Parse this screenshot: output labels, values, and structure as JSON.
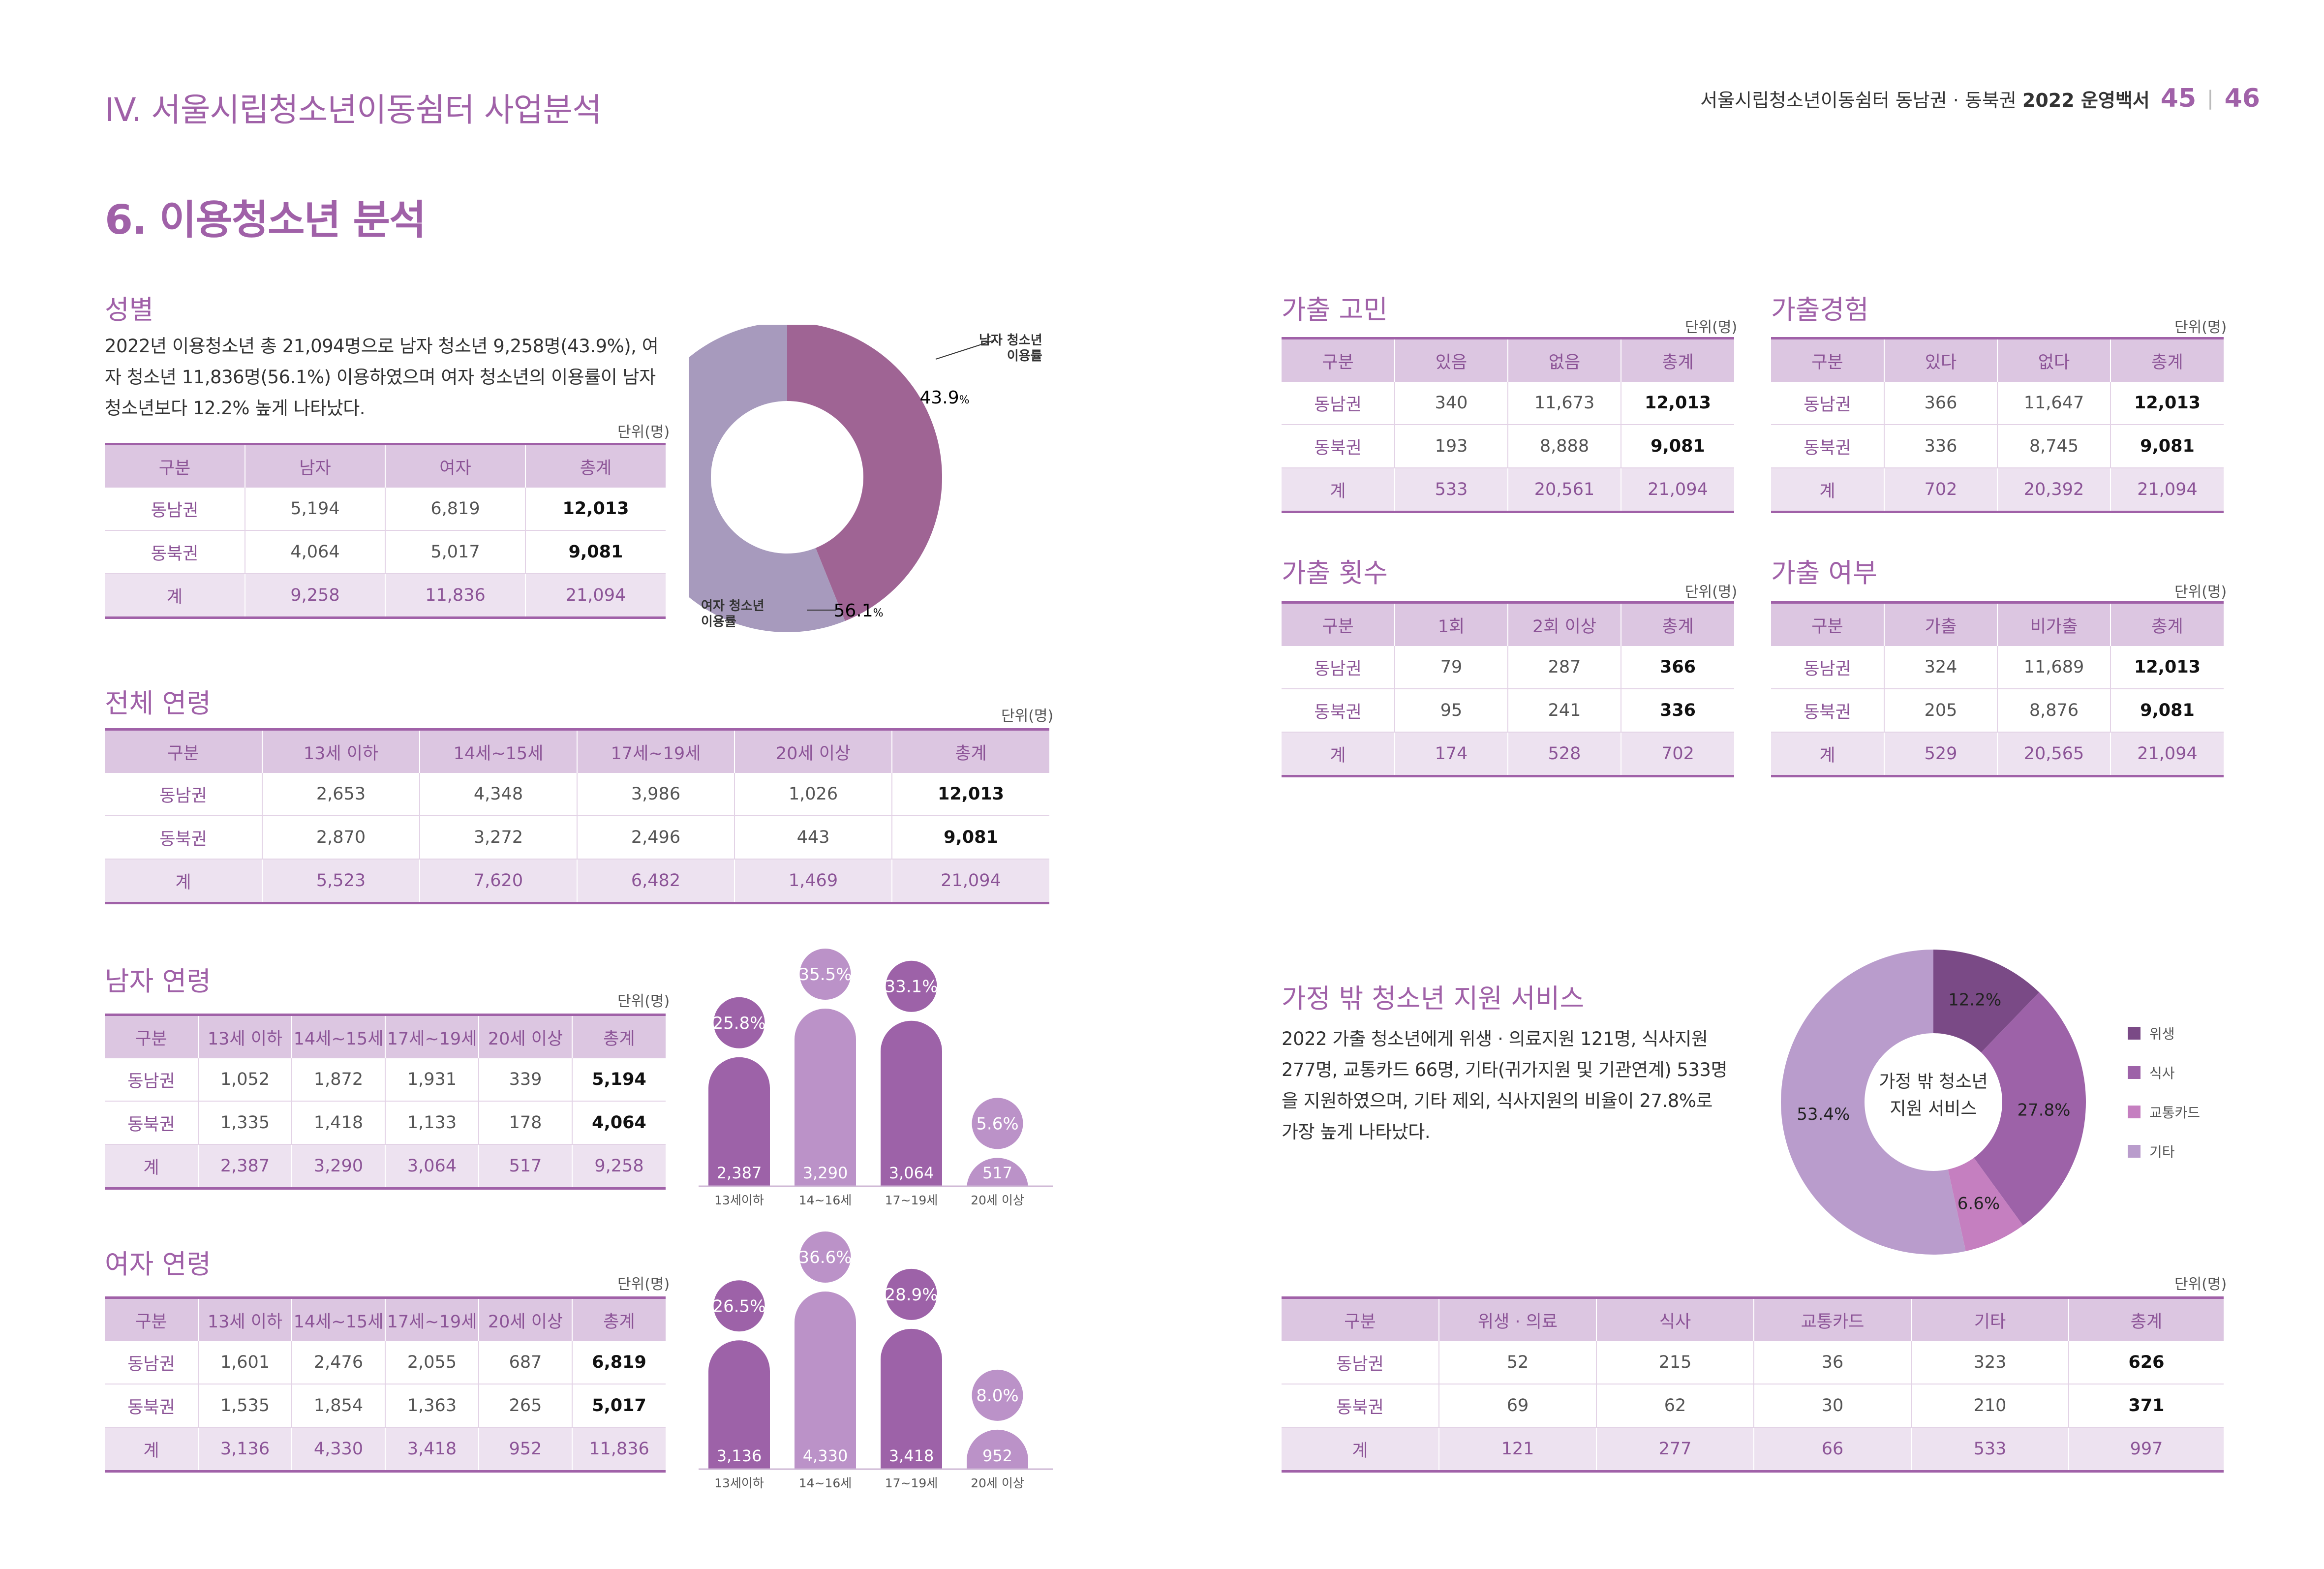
{
  "header": {
    "chapter_title": "IV. 서울시립청소년이동쉼터 사업분석",
    "book_title_prefix": "서울시립청소년이동쉼터 동남권 · 동북권",
    "book_title_bold": "2022 운영백서",
    "page_left": "45",
    "page_right": "46"
  },
  "section_title": "6. 이용청소년 분석",
  "unit_label": "단위(명)",
  "gender": {
    "title": "성별",
    "description": "2022년 이용청소년 총 21,094명으로 남자 청소년 9,258명(43.9%), 여자 청소년 11,836명(56.1%) 이용하였으며 여자 청소년의 이용률이 남자 청소년보다 12.2% 높게 나타났다.",
    "table": {
      "headers": [
        "구분",
        "남자",
        "여자",
        "총계"
      ],
      "rows": [
        [
          "동남권",
          "5,194",
          "6,819",
          "12,013"
        ],
        [
          "동북권",
          "4,064",
          "5,017",
          "9,081"
        ]
      ],
      "total": [
        "계",
        "9,258",
        "11,836",
        "21,094"
      ]
    },
    "chart": {
      "male_callout": "남자 청소년\n이용률",
      "female_callout": "여자 청소년\n이용률",
      "male_value": "43.9",
      "female_value": "56.1",
      "pct_sign": "%"
    }
  },
  "all_age": {
    "title": "전체 연령",
    "table": {
      "headers": [
        "구분",
        "13세 이하",
        "14세~15세",
        "17세~19세",
        "20세 이상",
        "총계"
      ],
      "rows": [
        [
          "동남권",
          "2,653",
          "4,348",
          "3,986",
          "1,026",
          "12,013"
        ],
        [
          "동북권",
          "2,870",
          "3,272",
          "2,496",
          "443",
          "9,081"
        ]
      ],
      "total": [
        "계",
        "5,523",
        "7,620",
        "6,482",
        "1,469",
        "21,094"
      ]
    }
  },
  "male_age": {
    "title": "남자 연령",
    "table": {
      "headers": [
        "구분",
        "13세 이하",
        "14세~15세",
        "17세~19세",
        "20세 이상",
        "총계"
      ],
      "rows": [
        [
          "동남권",
          "1,052",
          "1,872",
          "1,931",
          "339",
          "5,194"
        ],
        [
          "동북권",
          "1,335",
          "1,418",
          "1,133",
          "178",
          "4,064"
        ]
      ],
      "total": [
        "계",
        "2,387",
        "3,290",
        "3,064",
        "517",
        "9,258"
      ]
    }
  },
  "female_age": {
    "title": "여자 연령",
    "table": {
      "headers": [
        "구분",
        "13세 이하",
        "14세~15세",
        "17세~19세",
        "20세 이상",
        "총계"
      ],
      "rows": [
        [
          "동남권",
          "1,601",
          "2,476",
          "2,055",
          "687",
          "6,819"
        ],
        [
          "동북권",
          "1,535",
          "1,854",
          "1,363",
          "265",
          "5,017"
        ]
      ],
      "total": [
        "계",
        "3,136",
        "4,330",
        "3,418",
        "952",
        "11,836"
      ]
    }
  },
  "runaway_thought": {
    "title": "가출 고민",
    "table": {
      "headers": [
        "구분",
        "있음",
        "없음",
        "총계"
      ],
      "rows": [
        [
          "동남권",
          "340",
          "11,673",
          "12,013"
        ],
        [
          "동북권",
          "193",
          "8,888",
          "9,081"
        ]
      ],
      "total": [
        "계",
        "533",
        "20,561",
        "21,094"
      ]
    }
  },
  "runaway_experience": {
    "title": "가출경험",
    "table": {
      "headers": [
        "구분",
        "있다",
        "없다",
        "총계"
      ],
      "rows": [
        [
          "동남권",
          "366",
          "11,647",
          "12,013"
        ],
        [
          "동북권",
          "336",
          "8,745",
          "9,081"
        ]
      ],
      "total": [
        "계",
        "702",
        "20,392",
        "21,094"
      ]
    }
  },
  "runaway_count": {
    "title": "가출 횟수",
    "table": {
      "headers": [
        "구분",
        "1회",
        "2회 이상",
        "총계"
      ],
      "rows": [
        [
          "동남권",
          "79",
          "287",
          "366"
        ],
        [
          "동북권",
          "95",
          "241",
          "336"
        ]
      ],
      "total": [
        "계",
        "174",
        "528",
        "702"
      ]
    }
  },
  "runaway_status": {
    "title": "가출 여부",
    "table": {
      "headers": [
        "구분",
        "가출",
        "비가출",
        "총계"
      ],
      "rows": [
        [
          "동남권",
          "324",
          "11,689",
          "12,013"
        ],
        [
          "동북권",
          "205",
          "8,876",
          "9,081"
        ]
      ],
      "total": [
        "계",
        "529",
        "20,565",
        "21,094"
      ]
    }
  },
  "support": {
    "title": "가정 밖 청소년 지원 서비스",
    "description": "2022 가출 청소년에게 위생 · 의료지원 121명, 식사지원 277명, 교통카드 66명, 기타(귀가지원 및 기관연계) 533명을 지원하였으며, 기타 제외, 식사지원의 비율이 27.8%로 가장 높게 나타났다.",
    "chart_center": "가정 밖 청소년\n지원 서비스",
    "table": {
      "headers": [
        "구분",
        "위생 · 의료",
        "식사",
        "교통카드",
        "기타",
        "총계"
      ],
      "rows": [
        [
          "동남권",
          "52",
          "215",
          "36",
          "323",
          "626"
        ],
        [
          "동북권",
          "69",
          "62",
          "30",
          "210",
          "371"
        ]
      ],
      "total": [
        "계",
        "121",
        "277",
        "66",
        "533",
        "997"
      ]
    }
  },
  "chart_data": [
    {
      "type": "pie",
      "categories": [
        "남자 청소년 이용률",
        "여자 청소년 이용률"
      ],
      "values": [
        43.9,
        56.1
      ],
      "colors": [
        "#9f6494",
        "#a79abd"
      ]
    },
    {
      "type": "bar",
      "categories": [
        "13세이하",
        "14~16세",
        "17~19세",
        "20세 이상"
      ],
      "values": [
        2387,
        3290,
        3064,
        517
      ],
      "percent_labels": [
        "25.8%",
        "35.5%",
        "33.1%",
        "5.6%"
      ],
      "colors": [
        "#9d62a8",
        "#bb92c8",
        "#9d62a8",
        "#bb92c8"
      ]
    },
    {
      "type": "bar",
      "categories": [
        "13세이하",
        "14~16세",
        "17~19세",
        "20세 이상"
      ],
      "values": [
        3136,
        4330,
        3418,
        952
      ],
      "percent_labels": [
        "26.5%",
        "36.6%",
        "28.9%",
        "8.0%"
      ],
      "colors": [
        "#9d62a8",
        "#bb92c8",
        "#9d62a8",
        "#bb92c8"
      ]
    },
    {
      "type": "pie",
      "categories": [
        "위생",
        "식사",
        "교통카드",
        "기타"
      ],
      "values": [
        12.2,
        27.8,
        6.6,
        53.4
      ],
      "colors": [
        "#7a4a86",
        "#9d62a8",
        "#c57fc0",
        "#b99ccc"
      ]
    }
  ]
}
